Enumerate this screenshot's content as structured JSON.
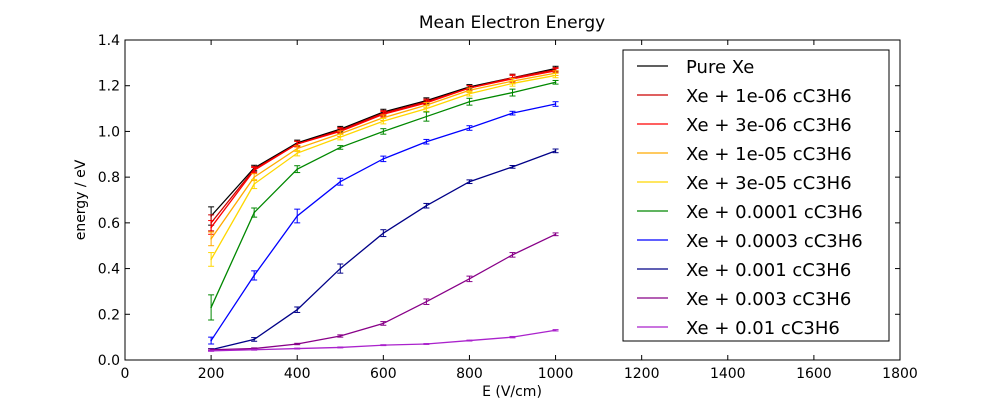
{
  "chart_data": {
    "type": "line",
    "title": "Mean Electron Energy",
    "xlabel": "E (V/cm)",
    "ylabel": "energy / eV",
    "xlim": [
      0,
      1800
    ],
    "ylim": [
      0.0,
      1.4
    ],
    "xticks": [
      0,
      200,
      400,
      600,
      800,
      1000,
      1200,
      1400,
      1600,
      1800
    ],
    "yticks": [
      0.0,
      0.2,
      0.4,
      0.6,
      0.8,
      1.0,
      1.2,
      1.4
    ],
    "ytick_labels": [
      "0.0",
      "0.2",
      "0.4",
      "0.6",
      "0.8",
      "1.0",
      "1.2",
      "1.4"
    ],
    "grid": false,
    "legend_position": "top-right",
    "x": [
      200,
      300,
      400,
      500,
      600,
      700,
      800,
      900,
      1000
    ],
    "series": [
      {
        "name": "Pure Xe",
        "color": "#000000",
        "values": [
          0.63,
          0.84,
          0.95,
          1.01,
          1.085,
          1.135,
          1.195,
          1.235,
          1.275
        ],
        "errors": [
          0.04,
          0.012,
          0.012,
          0.012,
          0.012,
          0.012,
          0.01,
          0.015,
          0.01
        ]
      },
      {
        "name": "Xe + 1e-06 cC3H6",
        "color": "#cc0000",
        "values": [
          0.6,
          0.835,
          0.945,
          1.005,
          1.08,
          1.13,
          1.19,
          1.235,
          1.27
        ],
        "errors": [
          0.035,
          0.012,
          0.012,
          0.012,
          0.012,
          0.012,
          0.01,
          0.015,
          0.01
        ]
      },
      {
        "name": "Xe + 3e-06 cC3H6",
        "color": "#ff0000",
        "values": [
          0.58,
          0.83,
          0.945,
          1.0,
          1.075,
          1.125,
          1.19,
          1.23,
          1.265
        ],
        "errors": [
          0.03,
          0.012,
          0.012,
          0.012,
          0.012,
          0.012,
          0.01,
          0.015,
          0.01
        ]
      },
      {
        "name": "Xe + 1e-05 cC3H6",
        "color": "#ffaa00",
        "values": [
          0.53,
          0.8,
          0.925,
          0.99,
          1.06,
          1.115,
          1.18,
          1.22,
          1.255
        ],
        "errors": [
          0.03,
          0.015,
          0.012,
          0.012,
          0.012,
          0.012,
          0.01,
          0.012,
          0.01
        ]
      },
      {
        "name": "Xe + 3e-05 cC3H6",
        "color": "#ffd700",
        "values": [
          0.44,
          0.77,
          0.905,
          0.975,
          1.045,
          1.1,
          1.165,
          1.21,
          1.245
        ],
        "errors": [
          0.03,
          0.02,
          0.012,
          0.012,
          0.012,
          0.012,
          0.01,
          0.012,
          0.01
        ]
      },
      {
        "name": "Xe + 0.0001 cC3H6",
        "color": "#008800",
        "values": [
          0.23,
          0.645,
          0.835,
          0.93,
          1.0,
          1.065,
          1.13,
          1.17,
          1.215
        ],
        "errors": [
          0.055,
          0.02,
          0.015,
          0.008,
          0.012,
          0.02,
          0.015,
          0.015,
          0.008
        ]
      },
      {
        "name": "Xe + 0.0003 cC3H6",
        "color": "#0000ff",
        "values": [
          0.085,
          0.37,
          0.63,
          0.78,
          0.88,
          0.955,
          1.015,
          1.08,
          1.12
        ],
        "errors": [
          0.015,
          0.02,
          0.03,
          0.015,
          0.012,
          0.01,
          0.01,
          0.008,
          0.01
        ]
      },
      {
        "name": "Xe + 0.001 cC3H6",
        "color": "#000088",
        "values": [
          0.045,
          0.09,
          0.22,
          0.4,
          0.555,
          0.675,
          0.78,
          0.845,
          0.915
        ],
        "errors": [
          0.005,
          0.008,
          0.012,
          0.02,
          0.015,
          0.01,
          0.008,
          0.006,
          0.008
        ]
      },
      {
        "name": "Xe + 0.003 cC3H6",
        "color": "#880088",
        "values": [
          0.045,
          0.05,
          0.07,
          0.105,
          0.16,
          0.255,
          0.355,
          0.46,
          0.55
        ],
        "errors": [
          0.003,
          0.003,
          0.003,
          0.005,
          0.008,
          0.012,
          0.012,
          0.01,
          0.006
        ]
      },
      {
        "name": "Xe + 0.01 cC3H6",
        "color": "#aa22cc",
        "values": [
          0.04,
          0.045,
          0.05,
          0.055,
          0.065,
          0.07,
          0.085,
          0.1,
          0.13
        ],
        "errors": [
          0.002,
          0.002,
          0.002,
          0.002,
          0.002,
          0.002,
          0.002,
          0.003,
          0.003
        ]
      }
    ]
  }
}
